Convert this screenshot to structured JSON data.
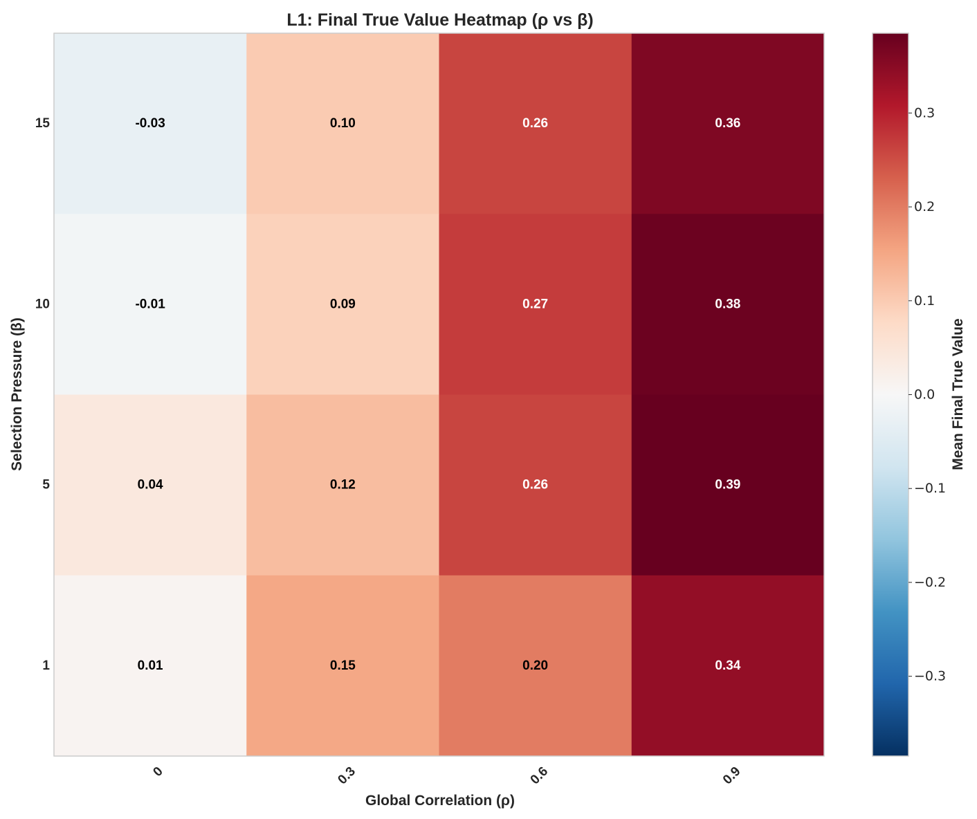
{
  "chart_data": {
    "type": "heatmap",
    "title": "L1: Final True Value Heatmap (ρ vs β)",
    "xlabel": "Global Correlation (ρ)",
    "ylabel": "Selection Pressure (β)",
    "x_categories": [
      "0",
      "0.3",
      "0.6",
      "0.9"
    ],
    "y_categories": [
      "15",
      "10",
      "5",
      "1"
    ],
    "values": [
      [
        -0.03,
        0.1,
        0.26,
        0.36
      ],
      [
        -0.01,
        0.09,
        0.27,
        0.38
      ],
      [
        0.04,
        0.12,
        0.26,
        0.39
      ],
      [
        0.01,
        0.15,
        0.2,
        0.34
      ]
    ],
    "value_labels": [
      [
        "-0.03",
        "0.10",
        "0.26",
        "0.36"
      ],
      [
        "-0.01",
        "0.09",
        "0.27",
        "0.38"
      ],
      [
        "0.04",
        "0.12",
        "0.26",
        "0.39"
      ],
      [
        "0.01",
        "0.15",
        "0.20",
        "0.34"
      ]
    ],
    "colormap": "RdBu_r",
    "color_range": [
      -0.385,
      0.385
    ],
    "colorbar": {
      "label": "Mean Final True Value",
      "ticks": [
        0.3,
        0.2,
        0.1,
        0.0,
        -0.1,
        -0.2,
        -0.3
      ],
      "tick_labels": [
        "0.3",
        "0.2",
        "0.1",
        "0.0",
        "−0.1",
        "−0.2",
        "−0.3"
      ]
    },
    "grid": false,
    "x_tick_rotation_deg": 45
  }
}
